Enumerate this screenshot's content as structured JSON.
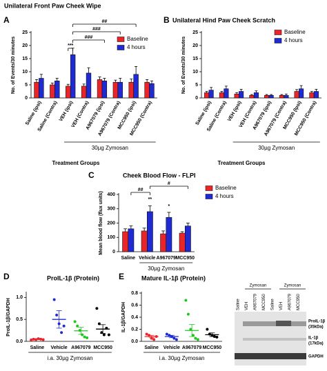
{
  "chart_data": [
    {
      "type": "bar",
      "panel": "A",
      "title": "Unilateral Front Paw Cheek Wipe",
      "ylabel": "No. of Events/30 minutes",
      "categories": [
        "Saline (ipsi)",
        "Saline (Contra)",
        "VEH (ipsi)",
        "VEH (Contra)",
        "A967079 (ipsi)",
        "A967079 (Contra)",
        "MCC950 (ipsi)",
        "MCC950 (Contra)"
      ],
      "series": [
        {
          "name": "Baseline",
          "color": "#e8262a",
          "values": [
            6,
            5,
            4.5,
            4.5,
            7,
            6,
            6,
            6
          ],
          "errors": [
            1,
            0.7,
            0.7,
            0.8,
            1,
            0.8,
            1.2,
            1
          ]
        },
        {
          "name": "4 hours",
          "color": "#1f2bd0",
          "values": [
            7.5,
            6.5,
            16.5,
            9.5,
            6.5,
            6,
            9,
            5.5
          ],
          "errors": [
            1.5,
            1,
            2.5,
            2,
            1,
            1.5,
            3,
            1
          ]
        }
      ],
      "ylim": [
        0,
        25
      ],
      "yticks": [
        0,
        5,
        10,
        15,
        20,
        25
      ],
      "legend": "upper right",
      "group_label": "30µg Zymosan",
      "xlabel": "Treatment Groups",
      "annotations": [
        "***",
        "###",
        "###",
        "##"
      ]
    },
    {
      "type": "bar",
      "panel": "B",
      "title": "Unilateral Hind Paw Cheek Scratch",
      "ylabel": "No. of Events/30 minutes",
      "categories": [
        "Saline (ipsi)",
        "Saline (Contra)",
        "VEH (ipsi)",
        "VEH (Contra)",
        "A967079 (ipsi)",
        "A967079 (Contra)",
        "MCC950 (Ipsi)",
        "MCC950 (Contra)"
      ],
      "series": [
        {
          "name": "Baseline",
          "color": "#e8262a",
          "values": [
            2,
            2,
            1.5,
            1,
            1,
            1,
            2.5,
            2
          ],
          "errors": [
            0.5,
            0.5,
            0.5,
            0.3,
            0.3,
            0.3,
            0.7,
            0.5
          ]
        },
        {
          "name": "4 hours",
          "color": "#1f2bd0",
          "values": [
            3,
            3.5,
            2.5,
            2,
            1,
            1,
            3.5,
            2.5
          ],
          "errors": [
            1,
            1,
            0.8,
            0.7,
            0.3,
            0.5,
            1.2,
            0.8
          ]
        }
      ],
      "ylim": [
        0,
        25
      ],
      "yticks": [
        0,
        5,
        10,
        15,
        20,
        25
      ],
      "legend": "upper right",
      "group_label": "30µg Zymosan",
      "xlabel": "Treatment Groups"
    },
    {
      "type": "bar",
      "panel": "C",
      "title": "Cheek Blood Flow - FLPI",
      "ylabel": "Mean blood flow (flux units)",
      "categories": [
        "Saline",
        "Vehicle",
        "A967079",
        "MCC950"
      ],
      "series": [
        {
          "name": "Baseline",
          "color": "#e8262a",
          "values": [
            140,
            145,
            125,
            130
          ],
          "errors": [
            20,
            20,
            20,
            10
          ]
        },
        {
          "name": "4 hours",
          "color": "#1f2bd0",
          "values": [
            160,
            280,
            240,
            180
          ],
          "errors": [
            20,
            40,
            35,
            20
          ]
        }
      ],
      "ylim": [
        0,
        400
      ],
      "yticks": [
        0,
        100,
        200,
        300,
        400
      ],
      "legend": "upper right",
      "group_label": "30µg Zymosan",
      "annotations": [
        "##",
        "#",
        "**",
        "*"
      ]
    },
    {
      "type": "dot",
      "panel": "D",
      "title": "ProIL-1β (Protein)",
      "ylabel": "ProIL-1β/GAPDH",
      "categories": [
        "Saline",
        "Vehicle",
        "A967079",
        "MCC950"
      ],
      "colors": [
        "#e8262a",
        "#1f2bd0",
        "#22c422",
        "#000000"
      ],
      "points": [
        [
          0.03,
          0.05,
          0.04,
          0.06,
          0.05,
          0.04
        ],
        [
          0.95,
          0.6,
          0.4,
          0.2,
          0.35
        ],
        [
          0.45,
          0.35,
          0.25,
          0.15,
          0.1,
          0.08
        ],
        [
          0.75,
          0.4,
          0.2,
          0.15,
          0.3,
          0.15
        ]
      ],
      "means": [
        0.05,
        0.5,
        0.24,
        0.28
      ],
      "errors": [
        0.01,
        0.2,
        0.08,
        0.1
      ],
      "ylim": [
        0,
        1.1
      ],
      "yticks": [
        {
          "value": 0,
          "label": "0.0"
        },
        0.5,
        {
          "value": 1,
          "label": "1.0"
        }
      ],
      "group_label": "i.a. 30µg Zymosan"
    },
    {
      "type": "dot",
      "panel": "E",
      "title": "Mature IL-1β (Protein)",
      "ylabel": "IL-1β/GAPDH",
      "categories": [
        "Saline",
        "Vehicle",
        "A967079",
        "MCC950"
      ],
      "colors": [
        "#e8262a",
        "#1f2bd0",
        "#22c422",
        "#000000"
      ],
      "points": [
        [
          0.12,
          0.1,
          0.05,
          0.03,
          0.08
        ],
        [
          0.12,
          0.1,
          0.08,
          0.05,
          0.03
        ],
        [
          0.68,
          0.45,
          0.2,
          0.1,
          0.05,
          0.03
        ],
        [
          0.2,
          0.12,
          0.1,
          0.08,
          0.07
        ]
      ],
      "means": [
        0.08,
        0.08,
        0.18,
        0.11
      ],
      "errors": [
        0.02,
        0.02,
        0.1,
        0.03
      ],
      "ylim": [
        0,
        0.8
      ],
      "yticks": [
        {
          "value": 0,
          "label": "0.0"
        },
        0.2,
        0.4,
        0.6,
        0.8
      ],
      "group_label": "i.a. 30µg Zymosan"
    }
  ],
  "blot": {
    "groups": [
      "Zymosan",
      "Zymosan"
    ],
    "lanes": [
      "Saline",
      "VEH",
      "A967079",
      "MCC950",
      "Saline",
      "VEH",
      "A967079",
      "MCC950"
    ],
    "bands": [
      "ProIL-1β",
      "(35kDa)",
      "IL-1β",
      "(17kDa)",
      "GAPDH"
    ]
  }
}
